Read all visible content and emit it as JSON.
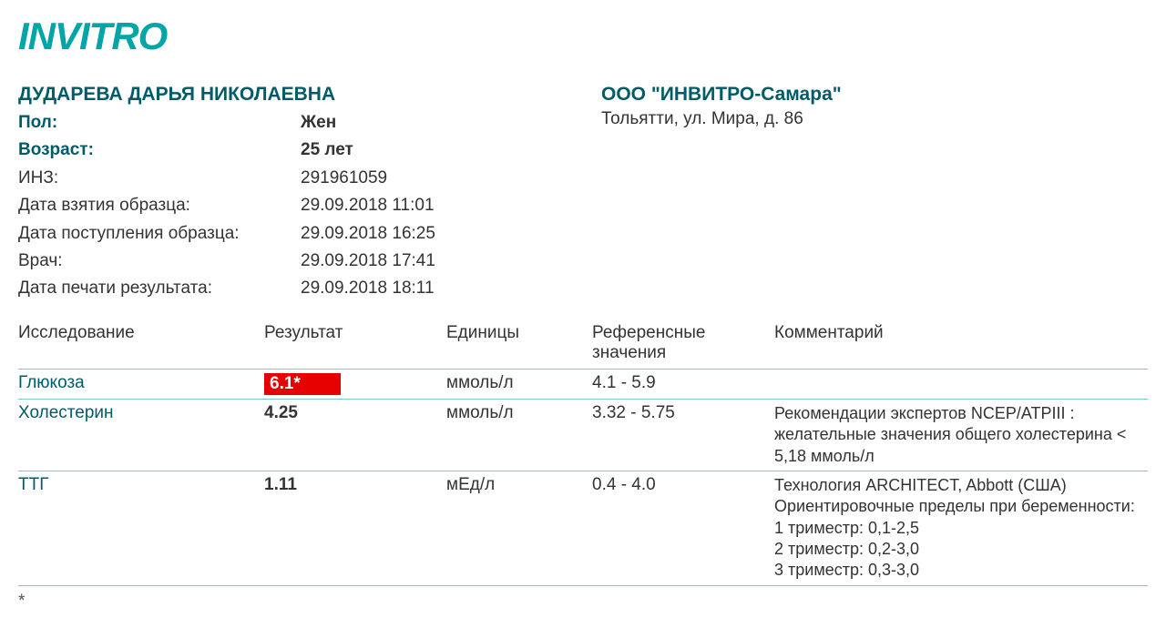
{
  "brand": {
    "logo_text": "INVITRO",
    "brand_color": "#00a5a8"
  },
  "patient": {
    "name": "ДУДАРЕВА ДАРЬЯ НИКОЛАЕВНА",
    "fields": [
      {
        "label": "Пол:",
        "value": "Жен",
        "bold": true
      },
      {
        "label": "Возраст:",
        "value": "25 лет",
        "bold": true
      },
      {
        "label": "ИНЗ:",
        "value": "291961059",
        "bold": false
      },
      {
        "label": "Дата взятия образца:",
        "value": "29.09.2018 11:01",
        "bold": false
      },
      {
        "label": "Дата поступления образца:",
        "value": "29.09.2018 16:25",
        "bold": false
      },
      {
        "label": "Врач:",
        "value": "29.09.2018 17:41",
        "bold": false
      },
      {
        "label": "Дата печати результата:",
        "value": "29.09.2018 18:11",
        "bold": false
      }
    ]
  },
  "org": {
    "name": "ООО \"ИНВИТРО-Самара\"",
    "address": "Тольятти, ул. Мира, д. 86"
  },
  "table": {
    "headers": {
      "test": "Исследование",
      "result": "Результат",
      "units": "Единицы",
      "ref": "Референсные значения",
      "comment": "Комментарий"
    },
    "rows": [
      {
        "test": "Глюкоза",
        "result": "6.1*",
        "flagged": true,
        "flag_bg": "#e60000",
        "flag_fg": "#ffffff",
        "units": "ммоль/л",
        "ref": "4.1 - 5.9",
        "comment": ""
      },
      {
        "test": "Холестерин",
        "result": "4.25",
        "flagged": false,
        "units": "ммоль/л",
        "ref": "3.32 - 5.75",
        "comment": "Рекомендации экспертов NCEP/ATPIII : желательные значения общего холестерина < 5,18 ммоль/л"
      },
      {
        "test": "ТТГ",
        "result": "1.11",
        "flagged": false,
        "units": "мЕд/л",
        "ref": "0.4 - 4.0",
        "comment": "Технология ARCHITECT, Abbott (США)\nОриентировочные пределы при беременности:\n1 триместр: 0,1-2,5\n2 триместр: 0,2-3,0\n3 триместр: 0,3-3,0"
      }
    ]
  },
  "footnote_prefix": "*",
  "colors": {
    "heading": "#005b68",
    "rule": "#7cc9c9",
    "text": "#333333",
    "background": "#ffffff"
  }
}
